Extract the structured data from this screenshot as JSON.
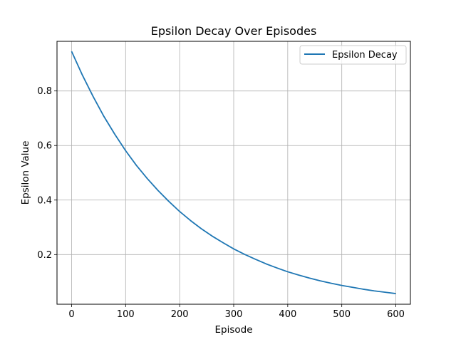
{
  "chart_data": {
    "type": "line",
    "title": "Epsilon Decay Over Episodes",
    "xlabel": "Episode",
    "ylabel": "Epsilon Value",
    "xlim": [
      -27,
      627
    ],
    "ylim": [
      0.018,
      0.982
    ],
    "xticks": [
      0,
      100,
      200,
      300,
      400,
      500,
      600
    ],
    "yticks": [
      0.2,
      0.4,
      0.6,
      0.8
    ],
    "ytick_labels": [
      "0.2",
      "0.4",
      "0.6",
      "0.8"
    ],
    "grid": true,
    "legend_position": "top-right",
    "series": [
      {
        "name": "Epsilon Decay",
        "color": "#1f77b4",
        "x": [
          0,
          20,
          40,
          60,
          80,
          100,
          120,
          140,
          160,
          180,
          200,
          220,
          240,
          260,
          280,
          300,
          320,
          340,
          360,
          380,
          400,
          420,
          440,
          460,
          480,
          500,
          520,
          540,
          560,
          580,
          600
        ],
        "y": [
          0.945,
          0.858,
          0.779,
          0.706,
          0.641,
          0.581,
          0.527,
          0.479,
          0.435,
          0.395,
          0.358,
          0.325,
          0.295,
          0.268,
          0.244,
          0.221,
          0.201,
          0.183,
          0.166,
          0.151,
          0.137,
          0.125,
          0.114,
          0.104,
          0.095,
          0.087,
          0.08,
          0.073,
          0.067,
          0.062,
          0.057
        ]
      }
    ]
  }
}
